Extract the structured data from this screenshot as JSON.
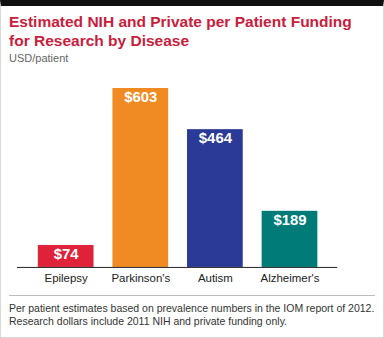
{
  "chart_data": {
    "type": "bar",
    "title": "Estimated NIH and Private per Patient Funding for Research by Disease",
    "subtitle": "USD/patient",
    "categories": [
      "Epilepsy",
      "Parkinson's",
      "Autism",
      "Alzheimer's"
    ],
    "values": [
      74,
      603,
      464,
      189
    ],
    "value_labels": [
      "$74",
      "$603",
      "$464",
      "$189"
    ],
    "colors": [
      "#e0213a",
      "#ef8b22",
      "#2b3a96",
      "#007b78"
    ],
    "ylim": [
      0,
      603
    ],
    "tick_labels": "x",
    "data_labels": true,
    "grid": false,
    "caption": [
      "Per patient estimates based on prevalence numbers in the IOM report of 2012.",
      "Research dollars include 2011 NIH and private funding only."
    ]
  }
}
